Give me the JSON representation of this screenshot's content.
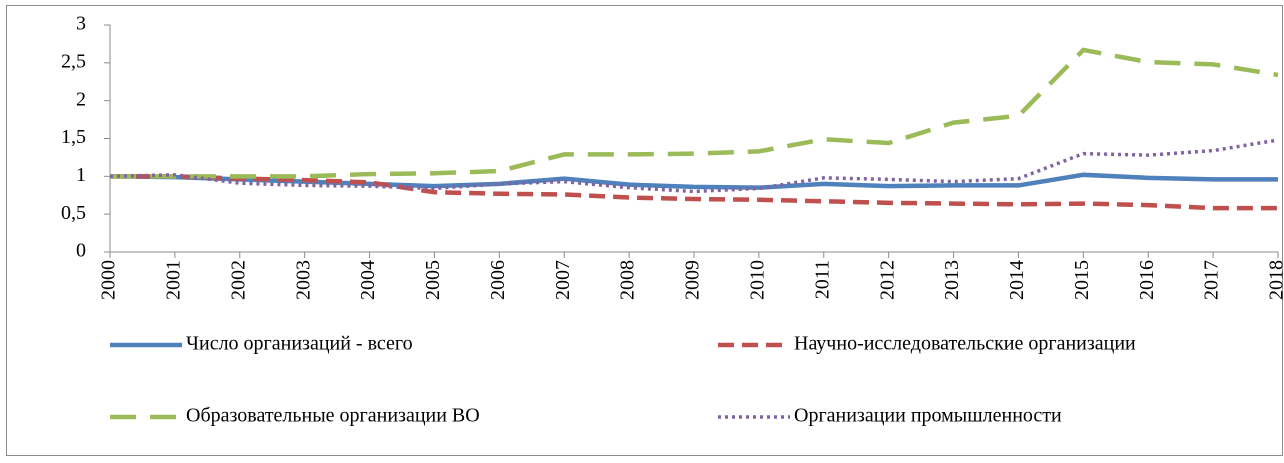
{
  "chart_data": {
    "type": "line",
    "categories": [
      "2000",
      "2001",
      "2002",
      "2003",
      "2004",
      "2005",
      "2006",
      "2007",
      "2008",
      "2009",
      "2010",
      "2011",
      "2012",
      "2013",
      "2014",
      "2015",
      "2016",
      "2017",
      "2018"
    ],
    "series": [
      {
        "name": "Число организаций - всего",
        "color": "#4f81bd",
        "dash": "solid",
        "values": [
          1.0,
          0.99,
          0.96,
          0.93,
          0.9,
          0.87,
          0.9,
          0.97,
          0.89,
          0.86,
          0.85,
          0.9,
          0.87,
          0.88,
          0.88,
          1.02,
          0.98,
          0.96,
          0.96
        ]
      },
      {
        "name": "Научно-исследовательские организации",
        "color": "#c0504d",
        "dash": "dashed",
        "values": [
          1.0,
          1.0,
          0.97,
          0.95,
          0.92,
          0.79,
          0.77,
          0.76,
          0.72,
          0.7,
          0.69,
          0.67,
          0.65,
          0.64,
          0.63,
          0.64,
          0.62,
          0.58,
          0.58
        ]
      },
      {
        "name": "Образовательные организации ВО",
        "color": "#9bbb59",
        "dash": "longdash",
        "values": [
          1.0,
          1.0,
          1.0,
          1.0,
          1.03,
          1.04,
          1.07,
          1.29,
          1.29,
          1.3,
          1.33,
          1.49,
          1.44,
          1.71,
          1.8,
          2.67,
          2.51,
          2.48,
          2.34
        ]
      },
      {
        "name": "Организации промышленности",
        "color": "#8064a2",
        "dash": "dotted",
        "values": [
          1.0,
          1.02,
          0.91,
          0.88,
          0.87,
          0.84,
          0.9,
          0.93,
          0.85,
          0.8,
          0.84,
          0.98,
          0.96,
          0.93,
          0.97,
          1.3,
          1.28,
          1.34,
          1.48
        ]
      }
    ],
    "ylim": [
      0,
      3
    ],
    "yticks": [
      0,
      {
        "value": 0.5,
        "label": "0,5"
      },
      1,
      {
        "value": 1.5,
        "label": "1,5"
      },
      2,
      {
        "value": 2.5,
        "label": "2,5"
      },
      3
    ],
    "grid": false,
    "legend": "bottom"
  }
}
